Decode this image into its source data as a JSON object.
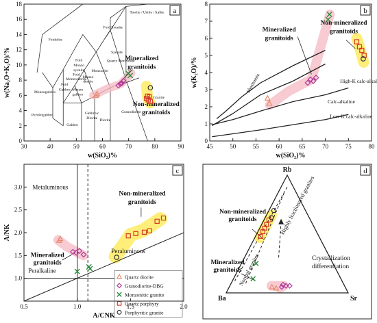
{
  "chart_data": [
    {
      "panel": "a",
      "type": "scatter",
      "panel_label": "a",
      "xlabel": "w(SiO₂)%",
      "ylabel": "w(Na₂O+K₂O)/%",
      "xlim": [
        30,
        90
      ],
      "ylim": [
        0,
        18
      ],
      "xticks": [
        30,
        40,
        50,
        60,
        70,
        80,
        90
      ],
      "yticks": [
        0,
        2,
        4,
        6,
        8,
        10,
        12,
        14,
        16,
        18
      ],
      "field_labels": [
        {
          "text": "Tawite / Urtite / Italite",
          "x": 77,
          "y": 16.8
        },
        {
          "text": "Foid Syenite",
          "x": 64,
          "y": 14.8
        },
        {
          "text": "Foidolite",
          "x": 42,
          "y": 13.2
        },
        {
          "text": "Syenite",
          "x": 65.5,
          "y": 11.5
        },
        {
          "text": "Foid",
          "x": 51,
          "y": 10.5
        },
        {
          "text": "Monzo",
          "x": 51,
          "y": 9.8
        },
        {
          "text": "syenite",
          "x": 51,
          "y": 9.2
        },
        {
          "text": "Foid",
          "x": 50,
          "y": 8.6
        },
        {
          "text": "Monzodiorite",
          "x": 50,
          "y": 8
        },
        {
          "text": "Monzonite",
          "x": 59,
          "y": 9.1
        },
        {
          "text": "Foid",
          "x": 45.5,
          "y": 7.3
        },
        {
          "text": "Gabbro",
          "x": 45.5,
          "y": 6.6
        },
        {
          "text": "Monzo",
          "x": 54.5,
          "y": 8.3
        },
        {
          "text": "diorite",
          "x": 54.5,
          "y": 7.7
        },
        {
          "text": "Monzo",
          "x": 50.5,
          "y": 6.6
        },
        {
          "text": "gabbro",
          "x": 50.5,
          "y": 6
        },
        {
          "text": "Quartz Monzonite",
          "x": 67,
          "y": 10.4
        },
        {
          "text": "Monzogabbro",
          "x": 38,
          "y": 6.3
        },
        {
          "text": "Peridotgabbro",
          "x": 37,
          "y": 3.3
        },
        {
          "text": "Gabbro",
          "x": 48.5,
          "y": 2
        },
        {
          "text": "Gabbroic",
          "x": 56,
          "y": 3.5
        },
        {
          "text": "Diorite",
          "x": 56,
          "y": 2.9
        },
        {
          "text": "Diorite",
          "x": 61,
          "y": 2.6
        },
        {
          "text": "Granodiorite",
          "x": 71,
          "y": 3.7
        },
        {
          "text": "Granite",
          "x": 81.5,
          "y": 5.6
        }
      ],
      "annotations": [
        {
          "text": "Mineralized",
          "x": 75,
          "y": 10.6
        },
        {
          "text": "granitoids",
          "x": 75,
          "y": 9.5
        },
        {
          "text": "Non-mineralized",
          "x": 80.5,
          "y": 4.6
        },
        {
          "text": "granitoids",
          "x": 80.5,
          "y": 3.5
        }
      ],
      "series": [
        {
          "name": "Quartz diorite",
          "marker": "triangle",
          "color": "#e8896a",
          "x": [
            57.5,
            57.9
          ],
          "y": [
            6.0,
            6.2
          ]
        },
        {
          "name": "Granodiorite-DBG",
          "marker": "diamond",
          "color": "#b23a9a",
          "x": [
            66.1,
            66.8,
            67.4,
            68.0
          ],
          "y": [
            7.3,
            7.5,
            7.6,
            7.9
          ]
        },
        {
          "name": "Monzonitic granite",
          "marker": "x",
          "color": "#2c8a3c",
          "x": [
            69.8,
            70.6
          ],
          "y": [
            8.9,
            8.6
          ]
        },
        {
          "name": "Quartz porphyry",
          "marker": "square",
          "color": "#d63b2a",
          "x": [
            76.8,
            77.2,
            77.5,
            77.9,
            78.3
          ],
          "y": [
            5.6,
            5.9,
            5.4,
            5.8,
            5.2
          ]
        },
        {
          "name": "Porphyritic granite",
          "marker": "circle",
          "color": "#333333",
          "x": [
            78.3
          ],
          "y": [
            7.0
          ]
        }
      ]
    },
    {
      "panel": "b",
      "type": "scatter",
      "panel_label": "b",
      "xlabel": "w(SiO₂)%",
      "ylabel": "w(K₂O)/%",
      "xlim": [
        45,
        80
      ],
      "ylim": [
        0,
        8
      ],
      "xticks": [
        45,
        50,
        55,
        60,
        65,
        70,
        75,
        80
      ],
      "yticks": [
        0,
        1,
        2,
        3,
        4,
        5,
        6,
        7,
        8
      ],
      "series_labels": [
        "Shoshonite",
        "High-K calc-alkaline",
        "Calc-alkaline",
        "Low-K calc-alkaline"
      ],
      "annotations": [
        {
          "text": "Mineralized",
          "x": 60,
          "y": 6.4
        },
        {
          "text": "granitoids",
          "x": 60,
          "y": 5.9
        },
        {
          "text": "Non-mineralized",
          "x": 74,
          "y": 6.8
        },
        {
          "text": "granitoids",
          "x": 74,
          "y": 6.3
        }
      ],
      "series": [
        {
          "name": "Quartz diorite",
          "marker": "triangle",
          "color": "#e8896a",
          "x": [
            57.5,
            57.9
          ],
          "y": [
            2.5,
            2.2
          ]
        },
        {
          "name": "Granodiorite-DBG",
          "marker": "diamond",
          "color": "#b23a9a",
          "x": [
            66.2,
            66.8,
            67.4,
            68.0
          ],
          "y": [
            3.4,
            3.6,
            3.5,
            3.7
          ]
        },
        {
          "name": "Monzonitic granite",
          "marker": "x",
          "color": "#2c8a3c",
          "x": [
            70.6,
            70.9
          ],
          "y": [
            7.1,
            7.4
          ]
        },
        {
          "name": "Quartz porphyry",
          "marker": "square",
          "color": "#d63b2a",
          "x": [
            76.8,
            77.4,
            77.9,
            78.4
          ],
          "y": [
            5.8,
            5.5,
            5.3,
            5.0
          ]
        },
        {
          "name": "Porphyritic granite",
          "marker": "circle",
          "color": "#333333",
          "x": [
            78.2
          ],
          "y": [
            4.8
          ]
        }
      ]
    },
    {
      "panel": "c",
      "type": "scatter",
      "panel_label": "c",
      "xlabel": "A/CNK",
      "ylabel": "A/NK",
      "xlim": [
        0.5,
        2.0
      ],
      "ylim": [
        0.5,
        3.5
      ],
      "xticks": [
        0.5,
        1.0,
        1.5,
        2.0
      ],
      "yticks": [
        1.0,
        1.5,
        2.0,
        2.5,
        3.0
      ],
      "region_labels": [
        "Metaluminous",
        "Peraluminous",
        "Peralkaline"
      ],
      "annotations": [
        {
          "text": "Non-mineralized",
          "x": 1.61,
          "y": 2.82
        },
        {
          "text": "granitoids",
          "x": 1.61,
          "y": 2.63
        },
        {
          "text": "Mineralized",
          "x": 0.72,
          "y": 1.47
        },
        {
          "text": "granitoids",
          "x": 0.72,
          "y": 1.3
        }
      ],
      "legend": [
        "Quartz diorite",
        "Granodiorite-DBG",
        "Monzonitic granite",
        "Quartz porphyry",
        "Porphyritic granite"
      ],
      "series": [
        {
          "name": "Quartz diorite",
          "marker": "triangle",
          "color": "#e8896a",
          "x": [
            0.83,
            0.84
          ],
          "y": [
            1.83,
            1.87
          ]
        },
        {
          "name": "Granodiorite-DBG",
          "marker": "diamond",
          "color": "#b23a9a",
          "x": [
            0.96,
            0.99,
            1.02,
            1.06
          ],
          "y": [
            1.58,
            1.56,
            1.6,
            1.52
          ]
        },
        {
          "name": "Monzonitic granite",
          "marker": "x",
          "color": "#2c8a3c",
          "x": [
            1.0,
            1.11,
            1.12
          ],
          "y": [
            1.15,
            1.25,
            1.21
          ]
        },
        {
          "name": "Quartz porphyry",
          "marker": "square",
          "color": "#d63b2a",
          "x": [
            1.48,
            1.55,
            1.63,
            1.68,
            1.75,
            1.81
          ],
          "y": [
            1.93,
            1.98,
            2.01,
            2.04,
            2.25,
            2.32
          ]
        },
        {
          "name": "Porphyritic granite",
          "marker": "circle",
          "color": "#333333",
          "x": [
            1.37
          ],
          "y": [
            1.46
          ]
        }
      ]
    },
    {
      "panel": "d",
      "type": "scatter",
      "panel_label": "d",
      "ternary": true,
      "vertices": [
        "Rb",
        "Ba",
        "Sr"
      ],
      "field_labels": [
        "Highly fractionated granites",
        "Normal granites",
        "Crystallization",
        "differentiation"
      ],
      "annotations": [
        {
          "text": "Non-mineralized",
          "a": 0.56,
          "b": 0.34,
          "c": 0.1
        },
        {
          "text": "granitoids",
          "a": 0.5,
          "b": 0.38,
          "c": 0.12
        },
        {
          "text": "Mineralized",
          "a": 0.22,
          "b": 0.7,
          "c": 0.08
        },
        {
          "text": "granitoids",
          "a": 0.16,
          "b": 0.75,
          "c": 0.09
        }
      ],
      "series": [
        {
          "name": "Quartz diorite",
          "marker": "triangle",
          "color": "#e8896a",
          "rb": [
            0.05,
            0.04
          ],
          "ba": [
            0.6,
            0.57
          ],
          "sr": [
            0.35,
            0.39
          ]
        },
        {
          "name": "Granodiorite-DBG",
          "marker": "diamond",
          "color": "#b23a9a",
          "rb": [
            0.06,
            0.07,
            0.05,
            0.06
          ],
          "ba": [
            0.48,
            0.5,
            0.52,
            0.45
          ],
          "sr": [
            0.46,
            0.43,
            0.43,
            0.49
          ]
        },
        {
          "name": "Monzonitic granite",
          "marker": "x",
          "color": "#2c8a3c",
          "rb": [
            0.25,
            0.12
          ],
          "ba": [
            0.63,
            0.72
          ],
          "sr": [
            0.12,
            0.16
          ]
        },
        {
          "name": "Quartz porphyry",
          "marker": "square",
          "color": "#d63b2a",
          "rb": [
            0.48,
            0.52,
            0.55,
            0.58,
            0.62
          ],
          "ba": [
            0.48,
            0.44,
            0.41,
            0.38,
            0.34
          ],
          "sr": [
            0.04,
            0.04,
            0.04,
            0.04,
            0.04
          ]
        },
        {
          "name": "Porphyritic granite",
          "marker": "circle",
          "color": "#333333",
          "rb": [
            0.64,
            0.7
          ],
          "ba": [
            0.31,
            0.26
          ],
          "sr": [
            0.05,
            0.04
          ]
        }
      ]
    }
  ]
}
